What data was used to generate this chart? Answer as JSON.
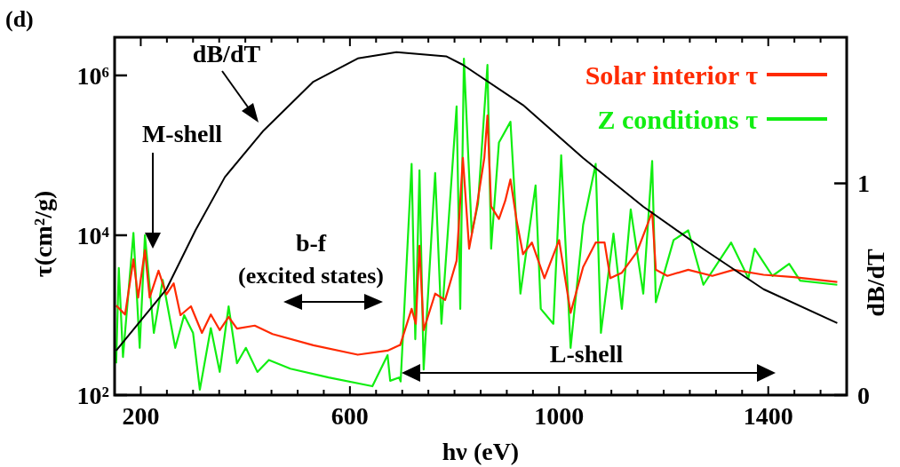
{
  "chart_data": {
    "type": "line",
    "xlabel": "hν (eV)",
    "ylabel": "τ(cm²/g)",
    "y2label": "dB/dT",
    "log": "y",
    "grid": false,
    "legend": "top right",
    "line_style": "solid",
    "marker": "none",
    "xlim": [
      150,
      1550
    ],
    "xticks": [
      {
        "value": 150,
        "label": null
      },
      200,
      {
        "value": 250,
        "label": null
      },
      {
        "value": 300,
        "label": null
      },
      {
        "value": 350,
        "label": null
      },
      {
        "value": 400,
        "label": null
      },
      {
        "value": 450,
        "label": null
      },
      {
        "value": 500,
        "label": null
      },
      {
        "value": 550,
        "label": null
      },
      600,
      {
        "value": 650,
        "label": null
      },
      {
        "value": 700,
        "label": null
      },
      {
        "value": 750,
        "label": null
      },
      {
        "value": 800,
        "label": null
      },
      {
        "value": 850,
        "label": null
      },
      {
        "value": 900,
        "label": null
      },
      {
        "value": 950,
        "label": null
      },
      1000,
      {
        "value": 1050,
        "label": null
      },
      {
        "value": 1100,
        "label": null
      },
      {
        "value": 1150,
        "label": null
      },
      {
        "value": 1200,
        "label": null
      },
      {
        "value": 1250,
        "label": null
      },
      {
        "value": 1300,
        "label": null
      },
      {
        "value": 1350,
        "label": null
      },
      1400,
      {
        "value": 1450,
        "label": null
      },
      {
        "value": 1500,
        "label": null
      }
    ],
    "ylim": [
      100,
      3000000
    ],
    "yticks": [
      {
        "value": 100,
        "label": "10²"
      },
      {
        "value": 10000,
        "label": "10⁴"
      },
      {
        "value": 1000000,
        "label": "10⁶"
      }
    ],
    "y2lim": [
      0,
      1.69
    ],
    "y2ticks": [
      0,
      1
    ],
    "annotations": [
      "(d)",
      "M-shell",
      "b-f",
      "(excited states)",
      "L-shell"
    ],
    "series": [
      {
        "name": "Solar interior τ",
        "color": "#ff2a00",
        "x": [
          153,
          170,
          186,
          195,
          208,
          217,
          234,
          249,
          263,
          276,
          296,
          317,
          334,
          351,
          368,
          384,
          418,
          452,
          530,
          615,
          672,
          694,
          696,
          718,
          726,
          733,
          741,
          763,
          782,
          804,
          816,
          828,
          841,
          857,
          863,
          870,
          885,
          897,
          907,
          919,
          931,
          948,
          972,
          1000,
          1022,
          1046,
          1070,
          1087,
          1098,
          1120,
          1149,
          1178,
          1185,
          1207,
          1247,
          1293,
          1334,
          1391,
          1449,
          1532
        ],
        "values": [
          1320,
          1020,
          5000,
          1660,
          6500,
          1660,
          3600,
          1820,
          2500,
          1000,
          1290,
          600,
          1020,
          650,
          950,
          680,
          740,
          580,
          420,
          320,
          360,
          420,
          420,
          1200,
          780,
          7400,
          650,
          1860,
          1550,
          4800,
          93000,
          6800,
          19500,
          93000,
          316000,
          23000,
          16000,
          27000,
          50000,
          15000,
          5800,
          8100,
          2900,
          8700,
          1070,
          4000,
          8100,
          8100,
          2900,
          3400,
          6200,
          19500,
          3700,
          3100,
          3700,
          3100,
          3700,
          3200,
          3000,
          2600
        ]
      },
      {
        "name": "Z conditions τ",
        "color": "#11ee11",
        "x": [
          153,
          158,
          166,
          186,
          198,
          208,
          225,
          242,
          266,
          283,
          300,
          313,
          334,
          351,
          368,
          384,
          401,
          423,
          445,
          486,
          559,
          643,
          672,
          677,
          694,
          697,
          718,
          725,
          733,
          741,
          763,
          775,
          804,
          811,
          818,
          833,
          845,
          863,
          870,
          885,
          907,
          926,
          955,
          965,
          989,
          1004,
          1022,
          1046,
          1070,
          1080,
          1104,
          1120,
          1137,
          1161,
          1178,
          1185,
          1219,
          1247,
          1276,
          1329,
          1362,
          1374,
          1408,
          1440,
          1461,
          1532
        ],
        "values": [
          250,
          3900,
          300,
          10700,
          390,
          10000,
          600,
          2750,
          390,
          1000,
          600,
          117,
          690,
          195,
          1290,
          250,
          390,
          195,
          275,
          214,
          166,
          129,
          316,
          151,
          166,
          148,
          78000,
          500,
          65000,
          209,
          60000,
          780,
          410000,
          1200,
          1620000,
          10500,
          25000,
          1350000,
          6800,
          145000,
          263000,
          1860,
          42000,
          1200,
          780,
          100000,
          390,
          13500,
          78000,
          600,
          10500,
          1200,
          21000,
          1860,
          85000,
          1450,
          8700,
          11500,
          2400,
          8100,
          2900,
          6800,
          3100,
          4400,
          2700,
          2400
        ]
      },
      {
        "name": "dB/dT",
        "color": "#000000",
        "axis": "y2",
        "x": [
          153,
          249,
          305,
          361,
          435,
          530,
          615,
          689,
          784,
          816,
          931,
          1046,
          1161,
          1276,
          1391,
          1532
        ],
        "values": [
          0.21,
          0.5,
          0.78,
          1.03,
          1.25,
          1.48,
          1.59,
          1.62,
          1.6,
          1.56,
          1.37,
          1.12,
          0.89,
          0.69,
          0.5,
          0.34
        ]
      }
    ]
  }
}
